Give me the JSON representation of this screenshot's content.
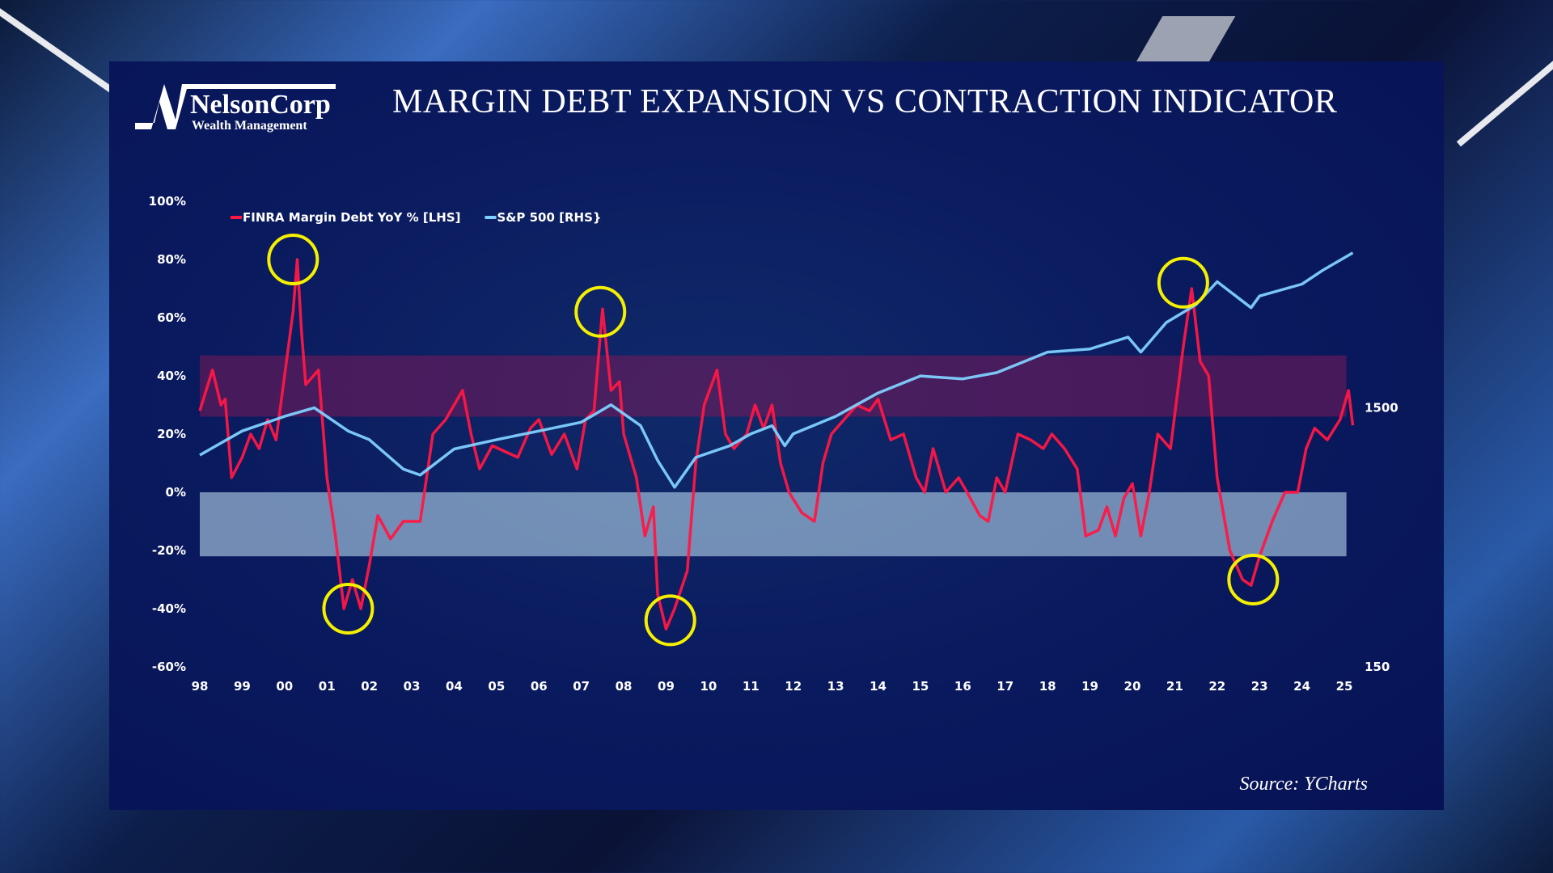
{
  "title": "MARGIN DEBT EXPANSION VS CONTRACTION INDICATOR",
  "logo": {
    "name": "NelsonCorp",
    "tagline": "Wealth Management"
  },
  "source": "Source: YCharts",
  "chart_data": {
    "type": "line",
    "title": "MARGIN DEBT EXPANSION VS CONTRACTION INDICATOR",
    "x_ticks": [
      "98",
      "99",
      "00",
      "01",
      "02",
      "03",
      "04",
      "05",
      "06",
      "07",
      "08",
      "09",
      "10",
      "11",
      "12",
      "13",
      "14",
      "15",
      "16",
      "17",
      "18",
      "19",
      "20",
      "21",
      "22",
      "23",
      "24",
      "25"
    ],
    "y_left_ticks": [
      "100%",
      "80%",
      "60%",
      "40%",
      "20%",
      "0%",
      "-20%",
      "-40%",
      "-60%"
    ],
    "y_left_range": [
      -60,
      100
    ],
    "y_right_ticks": [
      "1500",
      "150"
    ],
    "y_right_scale": "log",
    "y_right_range": [
      150,
      9400
    ],
    "x_range": [
      1998,
      2025
    ],
    "grid": false,
    "legend_placement": "top-left",
    "bands": [
      {
        "label": "",
        "from": 26,
        "to": 47,
        "color": "#7a1a5a"
      },
      {
        "label": "",
        "from": -22,
        "to": 0,
        "color": "#b8d8ee"
      }
    ],
    "series": [
      {
        "name": "FINRA Margin Debt YoY % [LHS]",
        "axis": "left",
        "color": "#ff1744",
        "points": [
          [
            1998.0,
            28
          ],
          [
            1998.3,
            42
          ],
          [
            1998.5,
            30
          ],
          [
            1998.6,
            32
          ],
          [
            1998.75,
            5
          ],
          [
            1999.0,
            12
          ],
          [
            1999.2,
            20
          ],
          [
            1999.4,
            15
          ],
          [
            1999.6,
            25
          ],
          [
            1999.8,
            18
          ],
          [
            2000.0,
            40
          ],
          [
            2000.2,
            62
          ],
          [
            2000.3,
            80
          ],
          [
            2000.4,
            55
          ],
          [
            2000.5,
            37
          ],
          [
            2000.8,
            42
          ],
          [
            2001.0,
            5
          ],
          [
            2001.2,
            -15
          ],
          [
            2001.4,
            -40
          ],
          [
            2001.6,
            -30
          ],
          [
            2001.8,
            -40
          ],
          [
            2002.0,
            -25
          ],
          [
            2002.2,
            -8
          ],
          [
            2002.5,
            -16
          ],
          [
            2002.8,
            -10
          ],
          [
            2003.2,
            -10
          ],
          [
            2003.5,
            20
          ],
          [
            2003.8,
            25
          ],
          [
            2004.0,
            30
          ],
          [
            2004.2,
            35
          ],
          [
            2004.4,
            20
          ],
          [
            2004.6,
            8
          ],
          [
            2004.9,
            16
          ],
          [
            2005.2,
            14
          ],
          [
            2005.5,
            12
          ],
          [
            2005.8,
            22
          ],
          [
            2006.0,
            25
          ],
          [
            2006.3,
            13
          ],
          [
            2006.6,
            20
          ],
          [
            2006.9,
            8
          ],
          [
            2007.1,
            25
          ],
          [
            2007.3,
            28
          ],
          [
            2007.5,
            63
          ],
          [
            2007.7,
            35
          ],
          [
            2007.9,
            38
          ],
          [
            2008.0,
            20
          ],
          [
            2008.3,
            5
          ],
          [
            2008.5,
            -15
          ],
          [
            2008.7,
            -5
          ],
          [
            2008.8,
            -35
          ],
          [
            2009.0,
            -47
          ],
          [
            2009.2,
            -40
          ],
          [
            2009.5,
            -27
          ],
          [
            2009.7,
            10
          ],
          [
            2009.9,
            30
          ],
          [
            2010.2,
            42
          ],
          [
            2010.4,
            20
          ],
          [
            2010.6,
            15
          ],
          [
            2010.9,
            20
          ],
          [
            2011.1,
            30
          ],
          [
            2011.3,
            22
          ],
          [
            2011.5,
            30
          ],
          [
            2011.7,
            10
          ],
          [
            2011.9,
            0
          ],
          [
            2012.2,
            -7
          ],
          [
            2012.5,
            -10
          ],
          [
            2012.7,
            10
          ],
          [
            2012.9,
            20
          ],
          [
            2013.2,
            25
          ],
          [
            2013.5,
            30
          ],
          [
            2013.8,
            28
          ],
          [
            2014.0,
            32
          ],
          [
            2014.3,
            18
          ],
          [
            2014.6,
            20
          ],
          [
            2014.9,
            5
          ],
          [
            2015.1,
            0
          ],
          [
            2015.3,
            15
          ],
          [
            2015.6,
            0
          ],
          [
            2015.9,
            5
          ],
          [
            2016.1,
            0
          ],
          [
            2016.4,
            -8
          ],
          [
            2016.6,
            -10
          ],
          [
            2016.8,
            5
          ],
          [
            2017.0,
            0
          ],
          [
            2017.3,
            20
          ],
          [
            2017.6,
            18
          ],
          [
            2017.9,
            15
          ],
          [
            2018.1,
            20
          ],
          [
            2018.4,
            15
          ],
          [
            2018.7,
            8
          ],
          [
            2018.9,
            -15
          ],
          [
            2019.2,
            -13
          ],
          [
            2019.4,
            -5
          ],
          [
            2019.6,
            -15
          ],
          [
            2019.8,
            -2
          ],
          [
            2020.0,
            3
          ],
          [
            2020.2,
            -15
          ],
          [
            2020.4,
            0
          ],
          [
            2020.6,
            20
          ],
          [
            2020.9,
            15
          ],
          [
            2021.2,
            50
          ],
          [
            2021.4,
            70
          ],
          [
            2021.6,
            45
          ],
          [
            2021.8,
            40
          ],
          [
            2022.0,
            5
          ],
          [
            2022.3,
            -20
          ],
          [
            2022.6,
            -30
          ],
          [
            2022.8,
            -32
          ],
          [
            2023.0,
            -22
          ],
          [
            2023.3,
            -10
          ],
          [
            2023.6,
            0
          ],
          [
            2023.9,
            0
          ],
          [
            2024.1,
            15
          ],
          [
            2024.3,
            22
          ],
          [
            2024.6,
            18
          ],
          [
            2024.9,
            25
          ],
          [
            2025.1,
            35
          ],
          [
            2025.2,
            23
          ]
        ]
      },
      {
        "name": "S&P 500 [RHS}",
        "axis": "right",
        "color": "#7fd0ff",
        "points": [
          [
            1998.0,
            985
          ],
          [
            1999.0,
            1220
          ],
          [
            2000.0,
            1390
          ],
          [
            2000.7,
            1500
          ],
          [
            2001.5,
            1220
          ],
          [
            2002.0,
            1130
          ],
          [
            2002.8,
            870
          ],
          [
            2003.2,
            825
          ],
          [
            2004.0,
            1040
          ],
          [
            2005.0,
            1130
          ],
          [
            2006.0,
            1220
          ],
          [
            2007.0,
            1320
          ],
          [
            2007.7,
            1540
          ],
          [
            2008.4,
            1280
          ],
          [
            2008.8,
            940
          ],
          [
            2009.2,
            740
          ],
          [
            2009.7,
            965
          ],
          [
            2010.5,
            1070
          ],
          [
            2011.0,
            1190
          ],
          [
            2011.5,
            1280
          ],
          [
            2011.8,
            1070
          ],
          [
            2012.0,
            1190
          ],
          [
            2013.0,
            1390
          ],
          [
            2014.0,
            1710
          ],
          [
            2015.0,
            1990
          ],
          [
            2016.0,
            1940
          ],
          [
            2016.8,
            2050
          ],
          [
            2018.0,
            2460
          ],
          [
            2019.0,
            2530
          ],
          [
            2019.9,
            2810
          ],
          [
            2020.2,
            2460
          ],
          [
            2020.8,
            3200
          ],
          [
            2021.5,
            3750
          ],
          [
            2022.0,
            4600
          ],
          [
            2022.8,
            3650
          ],
          [
            2023.0,
            4050
          ],
          [
            2024.0,
            4500
          ],
          [
            2024.5,
            5100
          ],
          [
            2025.2,
            5950
          ]
        ]
      }
    ],
    "annotations": [
      {
        "type": "circle",
        "x": 2000.2,
        "y": 80,
        "color": "#f5f000"
      },
      {
        "type": "circle",
        "x": 2001.5,
        "y": -40,
        "color": "#f5f000"
      },
      {
        "type": "circle",
        "x": 2007.45,
        "y": 62,
        "color": "#f5f000"
      },
      {
        "type": "circle",
        "x": 2009.1,
        "y": -44,
        "color": "#f5f000"
      },
      {
        "type": "circle",
        "x": 2021.2,
        "y": 72,
        "color": "#f5f000"
      },
      {
        "type": "circle",
        "x": 2022.85,
        "y": -30,
        "color": "#f5f000"
      }
    ]
  }
}
